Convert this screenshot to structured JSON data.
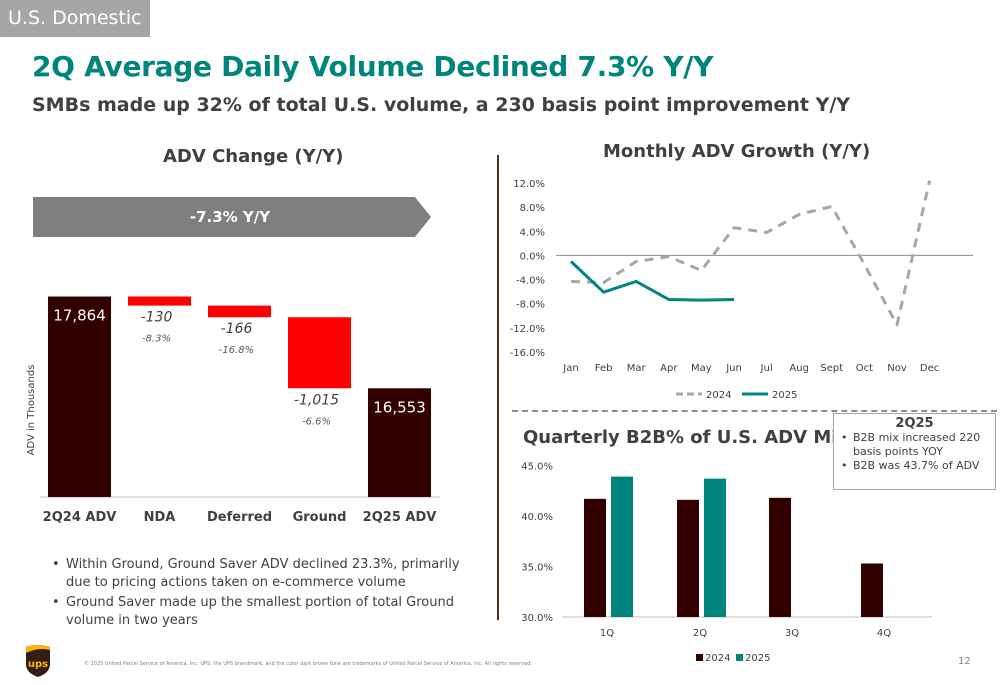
{
  "section_tag": "U.S. Domestic",
  "title": "2Q Average Daily Volume Declined 7.3% Y/Y",
  "subtitle": "SMBs made up 32% of total U.S. volume, a 230 basis point improvement Y/Y",
  "colors": {
    "dark": "#330000",
    "red": "#ff0000",
    "teal": "#00857d",
    "gray": "#a6a6a6"
  },
  "adv_panel": {
    "title": "ADV Change (Y/Y)",
    "banner": "-7.3% Y/Y",
    "y_axis_label": "ADV in Thousands"
  },
  "monthly_panel": {
    "title": "Monthly ADV Growth (Y/Y)"
  },
  "quarterly_panel": {
    "title": "Quarterly B2B% of U.S. ADV Mix"
  },
  "callout": {
    "title": "2Q25",
    "items": [
      "B2B mix increased 220 basis points YOY",
      "B2B was 43.7% of ADV"
    ]
  },
  "bullets": [
    "Within Ground, Ground Saver ADV declined 23.3%, primarily due to pricing actions taken on e-commerce volume",
    "Ground Saver made up the smallest portion of total Ground volume in two years"
  ],
  "footer": {
    "legal": "© 2025 United Parcel Service of America, Inc. UPS, the UPS brandmark, and the color dark brown tone are trademarks of United Parcel Service of America, Inc. All rights reserved.",
    "page_number": "12",
    "logo_text": "ups"
  },
  "chart_data": [
    {
      "type": "bar",
      "subtype": "waterfall",
      "title": "ADV Change (Y/Y)",
      "ylabel": "ADV in Thousands",
      "categories": [
        "2Q24 ADV",
        "NDA",
        "Deferred",
        "Ground",
        "2Q25 ADV"
      ],
      "values": [
        17864,
        -130,
        -166,
        -1015,
        16553
      ],
      "value_labels": [
        "17,864",
        "-130",
        "-166",
        "-1,015",
        "16,553"
      ],
      "percent_labels": [
        "",
        "-8.3%",
        "-16.8%",
        "-6.6%",
        ""
      ],
      "bar_kinds": [
        "total",
        "decrease",
        "decrease",
        "decrease",
        "total"
      ],
      "ylim": [
        15000,
        18100
      ]
    },
    {
      "type": "line",
      "title": "Monthly ADV Growth (Y/Y)",
      "categories": [
        "Jan",
        "Feb",
        "Mar",
        "Apr",
        "May",
        "Jun",
        "Jul",
        "Aug",
        "Sept",
        "Oct",
        "Nov",
        "Dec"
      ],
      "series": [
        {
          "name": "2024",
          "style": "dashed",
          "values": [
            -4.3,
            -4.5,
            -1.0,
            -0.2,
            -2.5,
            4.6,
            3.8,
            6.8,
            8.1,
            -1.5,
            -11.5,
            12.4
          ]
        },
        {
          "name": "2025",
          "style": "solid",
          "values": [
            -1.0,
            -6.1,
            -4.3,
            -7.3,
            -7.4,
            -7.3,
            null,
            null,
            null,
            null,
            null,
            null
          ]
        }
      ],
      "yticks": [
        "12.0%",
        "8.0%",
        "4.0%",
        "0.0%",
        "-4.0%",
        "-8.0%",
        "-12.0%",
        "-16.0%"
      ],
      "ylim": [
        -16,
        12
      ],
      "grid": false,
      "legend": "bottom"
    },
    {
      "type": "bar",
      "title": "Quarterly B2B% of U.S. ADV Mix",
      "categories": [
        "1Q",
        "2Q",
        "3Q",
        "4Q"
      ],
      "series": [
        {
          "name": "2024",
          "values": [
            41.7,
            41.6,
            41.8,
            35.3
          ]
        },
        {
          "name": "2025",
          "values": [
            43.9,
            43.7,
            null,
            null
          ]
        }
      ],
      "yticks": [
        "45.0%",
        "40.0%",
        "35.0%",
        "30.0%"
      ],
      "ylim": [
        30,
        46
      ],
      "grid": false,
      "legend": "bottom"
    }
  ]
}
